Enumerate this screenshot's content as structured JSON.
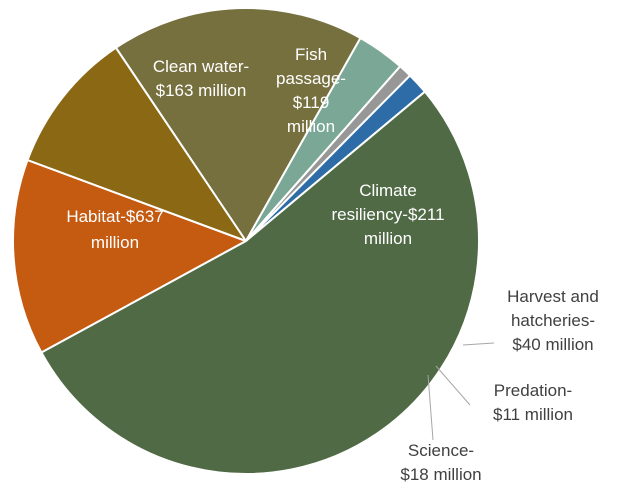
{
  "chart_data": {
    "type": "pie",
    "title": "",
    "unit": "$ million",
    "slices": [
      {
        "label": "Clean water-$163 million",
        "value": 163,
        "color": "#c55a11",
        "lines": [
          "Clean water-",
          "$163 million"
        ],
        "label_pos": "inside"
      },
      {
        "label": "Fish passage-$119 million",
        "value": 119,
        "color": "#8b6914",
        "lines": [
          "Fish",
          "passage-",
          "$119",
          "million"
        ],
        "label_pos": "inside"
      },
      {
        "label": "Climate resiliency-$211 million",
        "value": 211,
        "color": "#76703f",
        "lines": [
          "Climate",
          "resiliency-$211",
          "million"
        ],
        "label_pos": "inside"
      },
      {
        "label": "Harvest and hatcheries-$40 million",
        "value": 40,
        "color": "#7aa796",
        "lines": [
          "Harvest and",
          "hatcheries-",
          "$40 million"
        ],
        "label_pos": "outside"
      },
      {
        "label": "Predation-$11 million",
        "value": 11,
        "color": "#979797",
        "lines": [
          "Predation-",
          "$11 million"
        ],
        "label_pos": "outside"
      },
      {
        "label": "Science-$18 million",
        "value": 18,
        "color": "#2e6ca8",
        "lines": [
          "Science-",
          "$18 million"
        ],
        "label_pos": "outside"
      },
      {
        "label": "Habitat-$637 million",
        "value": 637,
        "color": "#4f6a45",
        "lines": [
          "Habitat-$637",
          "million"
        ],
        "label_pos": "inside"
      }
    ],
    "legend": "none"
  }
}
